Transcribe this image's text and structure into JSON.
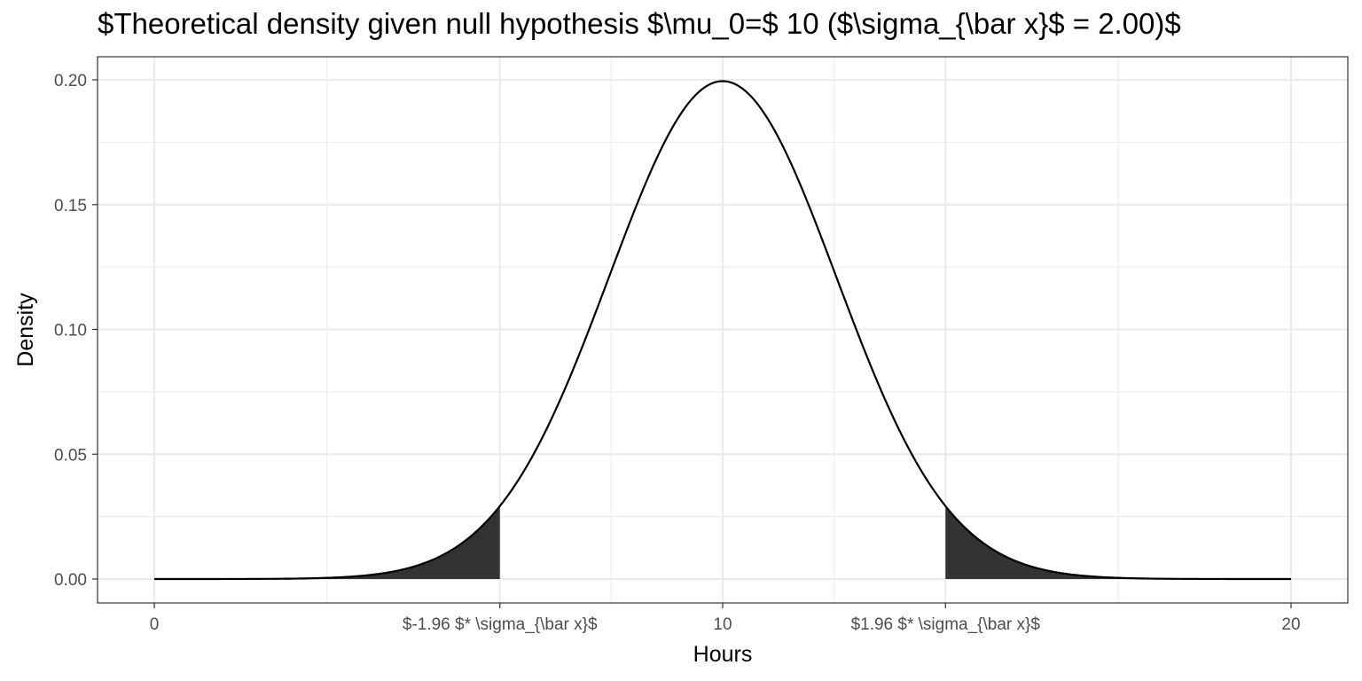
{
  "chart_data": {
    "type": "line",
    "title": "$Theoretical density given null hypothesis $\\mu_0=$ 10 ($\\sigma_{\\bar x}$ = 2.00)$",
    "xlabel": "Hours",
    "ylabel": "Density",
    "xlim": [
      0,
      20
    ],
    "ylim": [
      0,
      0.2
    ],
    "x_ticks": [
      {
        "value": 0,
        "label": "0"
      },
      {
        "value": 6.08,
        "label": "$-1.96 $* \\sigma_{\\bar x}$"
      },
      {
        "value": 10,
        "label": "10"
      },
      {
        "value": 13.92,
        "label": "$1.96 $* \\sigma_{\\bar x}$"
      },
      {
        "value": 20,
        "label": "20"
      }
    ],
    "y_ticks": [
      {
        "value": 0.0,
        "label": "0.00"
      },
      {
        "value": 0.05,
        "label": "0.05"
      },
      {
        "value": 0.1,
        "label": "0.10"
      },
      {
        "value": 0.15,
        "label": "0.15"
      },
      {
        "value": 0.2,
        "label": "0.20"
      }
    ],
    "series": [
      {
        "distribution": "normal",
        "mean": 10,
        "sd": 2,
        "x_range": [
          0,
          20
        ],
        "color": "#000000"
      }
    ],
    "shaded_regions": [
      {
        "from": 0,
        "to": 6.08,
        "color": "#333333"
      },
      {
        "from": 13.92,
        "to": 20,
        "color": "#333333"
      }
    ],
    "grid": true,
    "panel_border": true
  }
}
